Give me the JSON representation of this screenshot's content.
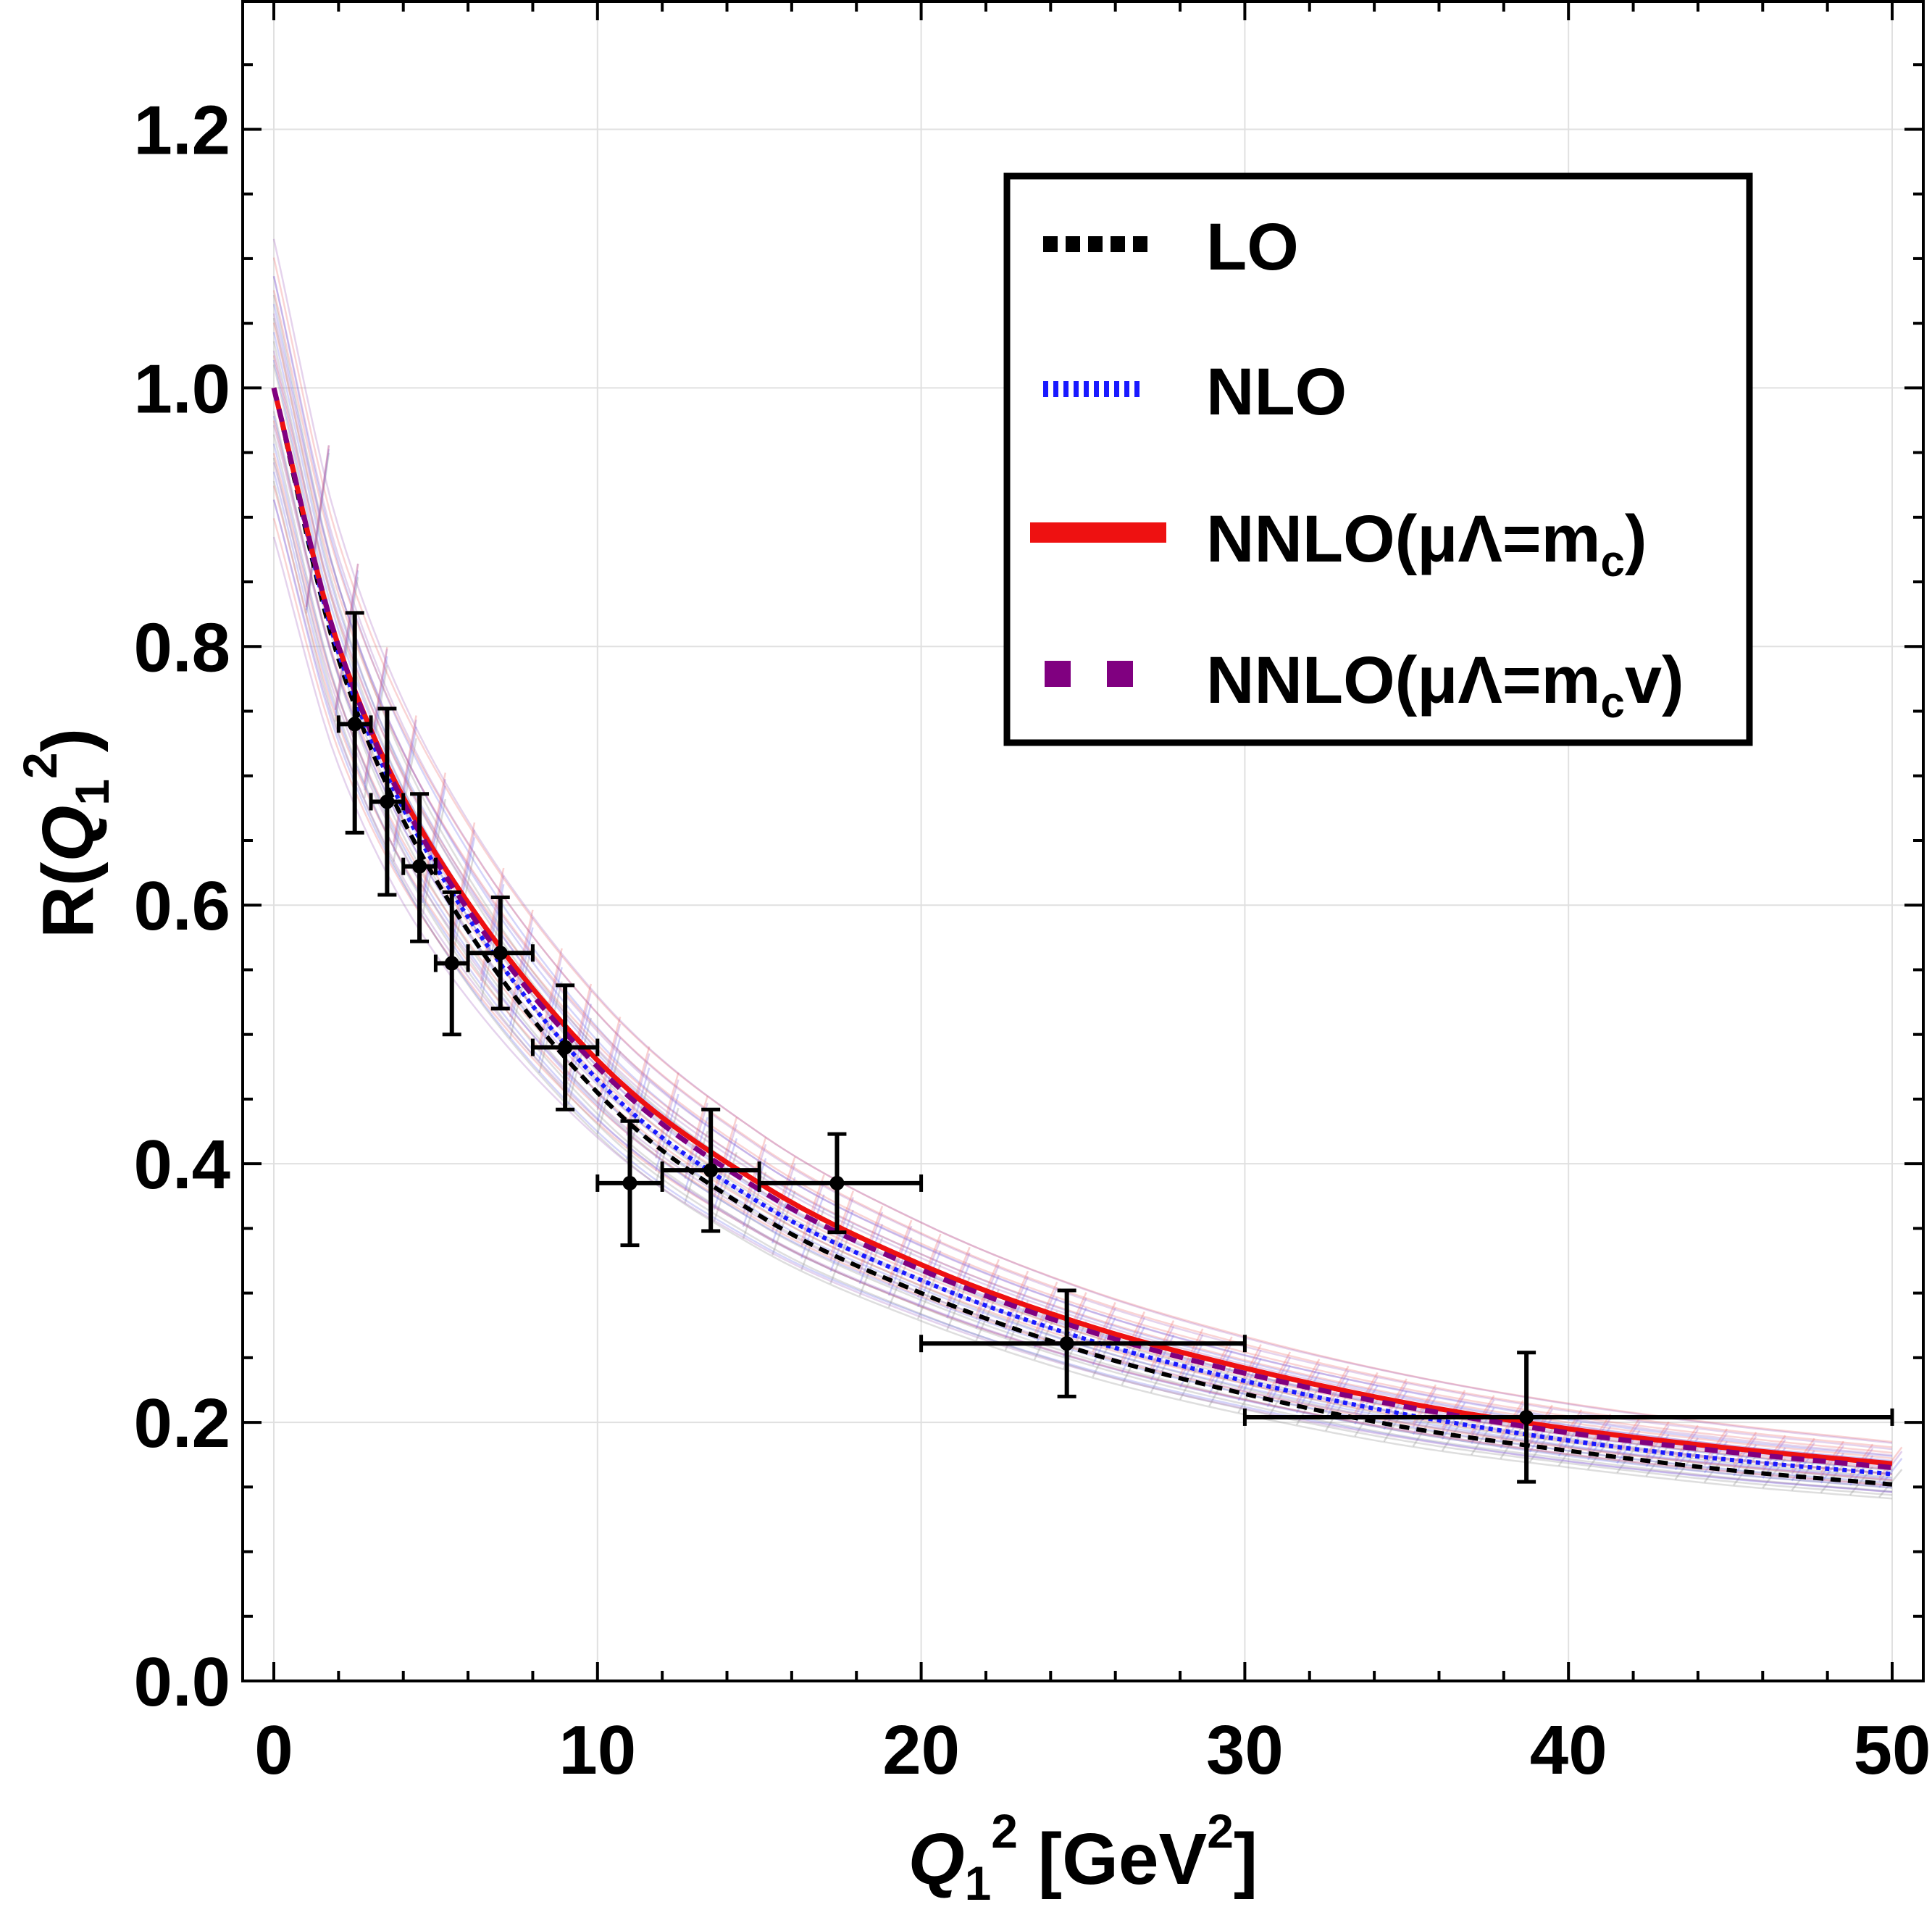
{
  "chart_data": {
    "type": "line",
    "xlabel": {
      "main": "Q",
      "sub": "1",
      "sup": "2",
      "unit_open": " [GeV",
      "unit_sup": "2",
      "unit_close": "]"
    },
    "ylabel": {
      "main": "R(",
      "var": "Q",
      "sub": "1",
      "sup": "2",
      "close": ")"
    },
    "xlim": [
      -1,
      51
    ],
    "ylim": [
      0,
      1.3
    ],
    "xticks": [
      0,
      10,
      20,
      30,
      40,
      50
    ],
    "xtick_labels": [
      "0",
      "10",
      "20",
      "30",
      "40",
      "50"
    ],
    "yticks": [
      0,
      0.2,
      0.4,
      0.6,
      0.8,
      1.0,
      1.2
    ],
    "ytick_labels": [
      "0.0",
      "0.2",
      "0.4",
      "0.6",
      "0.8",
      "1.0",
      "1.2"
    ],
    "grid": true,
    "legend_position": "top-right",
    "series": [
      {
        "name": "LO",
        "color": "#000000",
        "style": "dashed",
        "x": [
          0,
          2,
          5,
          10,
          15,
          20,
          25,
          30,
          35,
          40,
          45,
          50
        ],
        "y": [
          1.0,
          0.79,
          0.62,
          0.455,
          0.36,
          0.3,
          0.255,
          0.222,
          0.196,
          0.178,
          0.163,
          0.152
        ]
      },
      {
        "name": "NLO",
        "color": "#1a1aff",
        "style": "dotted",
        "x": [
          0,
          2,
          5,
          10,
          15,
          20,
          25,
          30,
          35,
          40,
          45,
          50
        ],
        "y": [
          1.0,
          0.795,
          0.63,
          0.465,
          0.37,
          0.31,
          0.265,
          0.232,
          0.206,
          0.186,
          0.171,
          0.16
        ]
      },
      {
        "name": "NNLO(μΛ=mc)",
        "color": "#ee1111",
        "style": "solid",
        "x": [
          0,
          2,
          5,
          10,
          15,
          20,
          25,
          30,
          35,
          40,
          45,
          50
        ],
        "y": [
          1.0,
          0.8,
          0.64,
          0.48,
          0.385,
          0.322,
          0.276,
          0.242,
          0.215,
          0.195,
          0.18,
          0.168
        ]
      },
      {
        "name": "NNLO(μΛ=mcv)",
        "color": "#800080",
        "style": "dashed",
        "x": [
          0,
          2,
          5,
          10,
          15,
          20,
          25,
          30,
          35,
          40,
          45,
          50
        ],
        "y": [
          1.0,
          0.8,
          0.635,
          0.475,
          0.38,
          0.318,
          0.272,
          0.238,
          0.212,
          0.192,
          0.177,
          0.165
        ]
      }
    ],
    "data_points": [
      {
        "x": 2.5,
        "y": 0.74,
        "xlo": 2,
        "xhi": 3,
        "ylo": 0.656,
        "yhi": 0.826
      },
      {
        "x": 3.5,
        "y": 0.68,
        "xlo": 3,
        "xhi": 4,
        "ylo": 0.608,
        "yhi": 0.752
      },
      {
        "x": 4.5,
        "y": 0.63,
        "xlo": 4,
        "xhi": 5,
        "ylo": 0.572,
        "yhi": 0.686
      },
      {
        "x": 5.5,
        "y": 0.555,
        "xlo": 5,
        "xhi": 6,
        "ylo": 0.5,
        "yhi": 0.61
      },
      {
        "x": 7.0,
        "y": 0.563,
        "xlo": 6,
        "xhi": 8,
        "ylo": 0.52,
        "yhi": 0.606
      },
      {
        "x": 9.0,
        "y": 0.49,
        "xlo": 8,
        "xhi": 10,
        "ylo": 0.442,
        "yhi": 0.538
      },
      {
        "x": 11.0,
        "y": 0.385,
        "xlo": 10,
        "xhi": 12,
        "ylo": 0.337,
        "yhi": 0.433
      },
      {
        "x": 13.5,
        "y": 0.395,
        "xlo": 12,
        "xhi": 15,
        "ylo": 0.348,
        "yhi": 0.442
      },
      {
        "x": 17.4,
        "y": 0.385,
        "xlo": 15,
        "xhi": 20,
        "ylo": 0.347,
        "yhi": 0.423
      },
      {
        "x": 24.5,
        "y": 0.261,
        "xlo": 20,
        "xhi": 30,
        "ylo": 0.22,
        "yhi": 0.302
      },
      {
        "x": 38.7,
        "y": 0.204,
        "xlo": 30,
        "xhi": 50,
        "ylo": 0.154,
        "yhi": 0.254
      }
    ]
  },
  "legend": {
    "entries": [
      {
        "main": "LO",
        "sub": "",
        "close": ""
      },
      {
        "main": "NLO",
        "sub": "",
        "close": ""
      },
      {
        "main": "NNLO(μΛ=m",
        "sub": "c",
        "close": ")"
      },
      {
        "main": "NNLO(μΛ=m",
        "sub": "c",
        "close": "v)"
      }
    ]
  }
}
